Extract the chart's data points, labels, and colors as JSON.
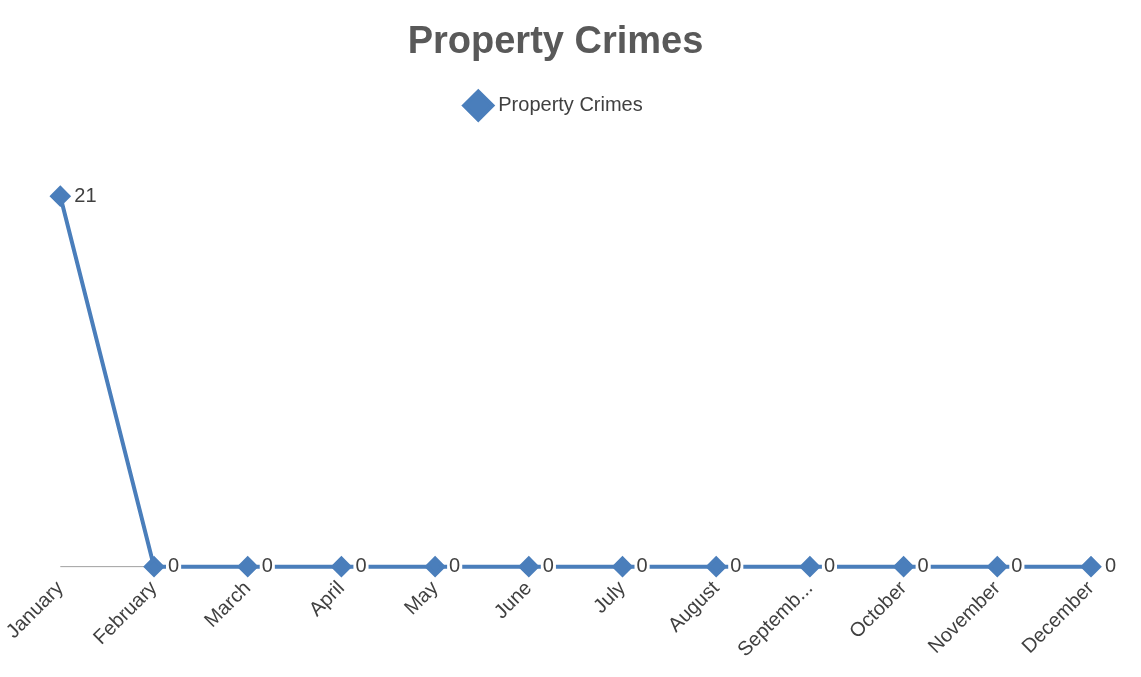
{
  "chart_data": {
    "type": "line",
    "title": "Property Crimes",
    "categories": [
      "January",
      "February",
      "March",
      "April",
      "May",
      "June",
      "July",
      "August",
      "Septemb...",
      "October",
      "November",
      "December"
    ],
    "series": [
      {
        "name": "Property Crimes",
        "color": "#4a7ebb",
        "values": [
          21,
          0,
          0,
          0,
          0,
          0,
          0,
          0,
          0,
          0,
          0,
          0
        ]
      }
    ],
    "data_labels": true,
    "legend": "top",
    "marker": "diamond",
    "grid": false,
    "tick_labels": "x"
  }
}
